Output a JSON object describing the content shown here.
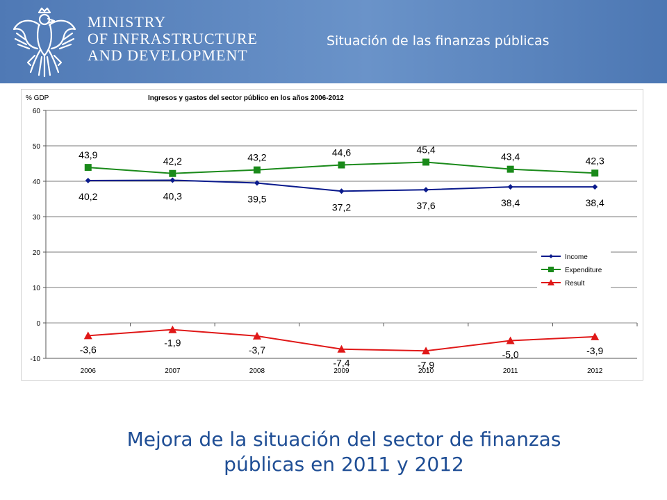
{
  "header": {
    "ministry_lines": [
      "MINISTRY",
      "OF INFRASTRUCTURE",
      "AND DEVELOPMENT"
    ],
    "slide_title": "Situación de las finanzas públicas",
    "logo_icon": "eagle-emblem-icon"
  },
  "footer": {
    "line1": "Mejora de la situación del sector de finanzas",
    "line2": "públicas en 2011 y 2012"
  },
  "colors": {
    "header_bg": "#5b85c0",
    "income": "#0a1a8c",
    "expenditure": "#1a8a1a",
    "result": "#e01818",
    "footer_text": "#1f4e95"
  },
  "chart_data": {
    "type": "line",
    "title": "Ingresos y gastos del sector público en los años 2006-2012",
    "ylabel": "% GDP",
    "xlabel": "",
    "categories": [
      "2006",
      "2007",
      "2008",
      "2009",
      "2010",
      "2011",
      "2012"
    ],
    "ylim": [
      -10,
      60
    ],
    "yticks": [
      "60",
      "50",
      "40",
      "30",
      "20",
      "10",
      "0",
      "-10"
    ],
    "grid": "horizontal",
    "legend_position": "right",
    "series": [
      {
        "name": "Income",
        "values": [
          40.2,
          40.3,
          39.5,
          37.2,
          37.6,
          38.4,
          38.4
        ],
        "labels": [
          "40,2",
          "40,3",
          "39,5",
          "37,2",
          "37,6",
          "38,4",
          "38,4"
        ],
        "marker": "diamond",
        "color": "#0a1a8c"
      },
      {
        "name": "Expenditure",
        "values": [
          43.9,
          42.2,
          43.2,
          44.6,
          45.4,
          43.4,
          42.3
        ],
        "labels": [
          "43,9",
          "42,2",
          "43,2",
          "44,6",
          "45,4",
          "43,4",
          "42,3"
        ],
        "marker": "square",
        "color": "#1a8a1a"
      },
      {
        "name": "Result",
        "values": [
          -3.6,
          -1.9,
          -3.7,
          -7.4,
          -7.9,
          -5.0,
          -3.9
        ],
        "labels": [
          "-3,6",
          "-1,9",
          "-3,7",
          "-7,4",
          "-7,9",
          "-5,0",
          "-3,9"
        ],
        "marker": "triangle",
        "color": "#e01818"
      }
    ]
  }
}
